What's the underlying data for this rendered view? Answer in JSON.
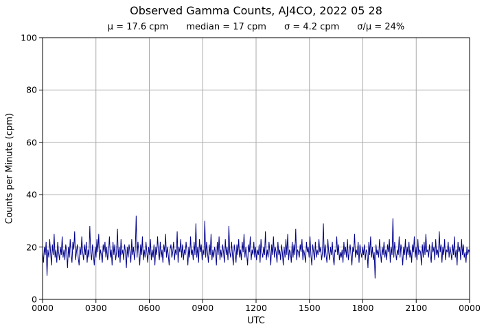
{
  "title": "Observed Gamma Counts, AJ4CO, 2022 05 28",
  "stats_line": {
    "mu": "μ = 17.6 cpm",
    "median": "median = 17 cpm",
    "sigma": "σ = 4.2 cpm",
    "ratio": "σ/μ = 24%"
  },
  "chart_data": {
    "type": "line",
    "title": "Observed Gamma Counts, AJ4CO, 2022 05 28",
    "subtitle": "μ = 17.6 cpm   median = 17 cpm   σ = 4.2 cpm   σ/μ = 24%",
    "xlabel": "UTC",
    "ylabel": "Counts per Minute (cpm)",
    "ylim": [
      0,
      100
    ],
    "xlim_hours": [
      0,
      24
    ],
    "y_ticks": [
      0,
      20,
      40,
      60,
      80,
      100
    ],
    "x_tick_hours": [
      0,
      3,
      6,
      9,
      12,
      15,
      18,
      21,
      24
    ],
    "x_tick_labels": [
      "0000",
      "0300",
      "0600",
      "0900",
      "1200",
      "1500",
      "1800",
      "2100",
      "0000"
    ],
    "grid": true,
    "grid_color": "#aaaaaa",
    "axis_color": "#000000",
    "line_color": "#00008b",
    "stats": {
      "mean_cpm": 17.6,
      "median_cpm": 17,
      "sigma_cpm": 4.2,
      "sigma_over_mu_pct": 24
    },
    "series": [
      {
        "name": "observed gamma counts (cpm)",
        "sample_interval_minutes": 3,
        "values": [
          18,
          14,
          20,
          17,
          22,
          9,
          19,
          16,
          23,
          18,
          13,
          21,
          17,
          25,
          16,
          19,
          14,
          22,
          18,
          15,
          20,
          17,
          24,
          16,
          19,
          15,
          21,
          18,
          12,
          20,
          16,
          23,
          17,
          14,
          22,
          19,
          26,
          15,
          18,
          21,
          16,
          13,
          20,
          17,
          24,
          18,
          15,
          21,
          17,
          22,
          14,
          19,
          16,
          28,
          18,
          15,
          21,
          17,
          13,
          20,
          16,
          23,
          18,
          25,
          15,
          19,
          17,
          14,
          21,
          18,
          22,
          16,
          20,
          15,
          18,
          24,
          16,
          19,
          13,
          22,
          17,
          21,
          15,
          18,
          27,
          16,
          20,
          14,
          23,
          17,
          19,
          15,
          21,
          18,
          12,
          20,
          16,
          21,
          18,
          14,
          23,
          17,
          20,
          15,
          19,
          32,
          16,
          22,
          18,
          13,
          21,
          17,
          24,
          15,
          19,
          16,
          22,
          18,
          14,
          20,
          17,
          23,
          15,
          19,
          16,
          21,
          13,
          20,
          17,
          24,
          18,
          15,
          22,
          16,
          19,
          14,
          21,
          18,
          25,
          16,
          20,
          17,
          13,
          19,
          21,
          16,
          18,
          22,
          15,
          19,
          17,
          26,
          14,
          20,
          18,
          23,
          16,
          21,
          15,
          19,
          17,
          22,
          18,
          13,
          20,
          16,
          24,
          17,
          19,
          15,
          22,
          17,
          29,
          16,
          20,
          14,
          23,
          18,
          21,
          15,
          19,
          17,
          30,
          16,
          22,
          18,
          14,
          21,
          17,
          25,
          15,
          19,
          16,
          20,
          18,
          13,
          22,
          17,
          24,
          15,
          19,
          16,
          21,
          18,
          14,
          23,
          17,
          20,
          15,
          28,
          18,
          16,
          22,
          17,
          13,
          21,
          18,
          14,
          21,
          17,
          23,
          16,
          19,
          15,
          22,
          18,
          25,
          16,
          20,
          17,
          13,
          21,
          18,
          24,
          15,
          19,
          17,
          22,
          16,
          20,
          15,
          19,
          17,
          21,
          14,
          23,
          18,
          16,
          20,
          17,
          26,
          15,
          19,
          16,
          22,
          18,
          13,
          21,
          17,
          24,
          16,
          20,
          18,
          14,
          22,
          17,
          19,
          15,
          21,
          18,
          13,
          20,
          16,
          23,
          17,
          25,
          15,
          19,
          18,
          14,
          22,
          16,
          21,
          17,
          27,
          15,
          19,
          18,
          16,
          21,
          18,
          23,
          15,
          19,
          17,
          14,
          22,
          18,
          20,
          16,
          24,
          17,
          13,
          21,
          18,
          15,
          22,
          16,
          19,
          17,
          23,
          18,
          20,
          15,
          18,
          29,
          16,
          21,
          17,
          14,
          23,
          18,
          15,
          20,
          17,
          22,
          16,
          13,
          19,
          18,
          24,
          17,
          21,
          15,
          18,
          16,
          19,
          14,
          22,
          17,
          20,
          16,
          23,
          15,
          18,
          21,
          17,
          13,
          20,
          18,
          25,
          16,
          19,
          17,
          22,
          14,
          21,
          18,
          16,
          20,
          17,
          21,
          15,
          19,
          18,
          12,
          22,
          17,
          24,
          16,
          20,
          15,
          18,
          8,
          21,
          17,
          19,
          16,
          23,
          18,
          14,
          20,
          17,
          22,
          16,
          19,
          15,
          21,
          18,
          23,
          14,
          20,
          17,
          31,
          16,
          22,
          18,
          15,
          19,
          17,
          24,
          16,
          21,
          18,
          13,
          20,
          17,
          23,
          15,
          20,
          17,
          22,
          16,
          19,
          14,
          21,
          18,
          24,
          16,
          20,
          15,
          23,
          17,
          19,
          18,
          13,
          21,
          16,
          22,
          17,
          25,
          18,
          19,
          16,
          21,
          17,
          14,
          22,
          18,
          20,
          15,
          23,
          17,
          19,
          16,
          26,
          18,
          21,
          14,
          20,
          17,
          23,
          15,
          19,
          18,
          22,
          16,
          20,
          18,
          15,
          21,
          17,
          24,
          16,
          19,
          13,
          22,
          18,
          20,
          15,
          23,
          17,
          21,
          16,
          18,
          14,
          20,
          17,
          19,
          18
        ]
      }
    ]
  }
}
